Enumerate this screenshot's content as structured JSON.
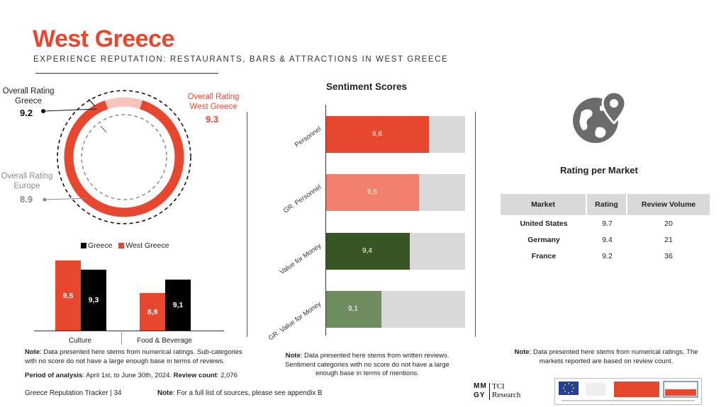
{
  "header": {
    "title": "West Greece",
    "subtitle": "EXPERIENCE REPUTATION: RESTAURANTS, BARS & ATTRACTIONS IN WEST GREECE"
  },
  "donut": {
    "greece_label": "Overall Rating\nGreece",
    "greece_value": "9.2",
    "west_label": "Overall Rating\nWest Greece",
    "west_value": "9.3",
    "europe_label": "Overall Rating\nEurope",
    "europe_value": "8.9",
    "colors": {
      "west": "#e8472f",
      "remainder": "#f6c4bb"
    }
  },
  "sentiment": {
    "title": "Sentiment Scores",
    "rows": [
      {
        "label": "Personnel",
        "value": "9,6",
        "fraction": 0.74,
        "color": "#e8472f"
      },
      {
        "label": "GR. Personnel",
        "value": "9,5",
        "fraction": 0.67,
        "color": "#f17f6d"
      },
      {
        "label": "Value for Money",
        "value": "9,4",
        "fraction": 0.6,
        "color": "#375623"
      },
      {
        "label": "GR. Value for Money",
        "value": "9,1",
        "fraction": 0.4,
        "color": "#6f8c5e"
      }
    ]
  },
  "chart_data": {
    "type": "bar",
    "categories": [
      "Culture",
      "Food & Beverage"
    ],
    "series": [
      {
        "name": "Greece",
        "values": [
          9.3,
          9.1
        ],
        "labels": [
          "9,3",
          "9,1"
        ],
        "color": "#000000"
      },
      {
        "name": "West Greece",
        "values": [
          9.5,
          8.8
        ],
        "labels": [
          "9,5",
          "8,8"
        ],
        "color": "#e8472f"
      }
    ],
    "legend_position": "top"
  },
  "rating_per_market": {
    "title": "Rating per Market",
    "headers": [
      "Market",
      "Rating",
      "Review Volume"
    ],
    "rows": [
      [
        "United States",
        "9.7",
        "20"
      ],
      [
        "Germany",
        "9.4",
        "21"
      ],
      [
        "France",
        "9.2",
        "36"
      ]
    ]
  },
  "notes": {
    "left_note_label": "Note",
    "left_note_text": ": Data presented here stems from numerical ratings. Sub-categories with no score do not have a large enough base in terms of reviews.",
    "period_label": "Period of analysis",
    "period_text": ": April 1st, to June 30th, 2024.",
    "review_label": "Review count",
    "review_text": ": 2,076",
    "mid_note_label": "Note",
    "mid_note_text": ": Data presented here stems from written reviews. Sentiment categories with no score do not have a large enough base in terms of mentions.",
    "right_note_label": "Note",
    "right_note_text": ": Data presented here stems from  numerical ratings. The markets reported are based on review count."
  },
  "footer": {
    "tracker": "Greece Reputation Tracker |  34",
    "note_label": "Note",
    "note_text": ": For a full list of sources, please see appendix B",
    "logo_mm": "MM",
    "logo_gy": "GY",
    "logo_tci": "TCI",
    "logo_research": "Research"
  },
  "icons": {
    "market_icon": "globe-pin-icon"
  }
}
